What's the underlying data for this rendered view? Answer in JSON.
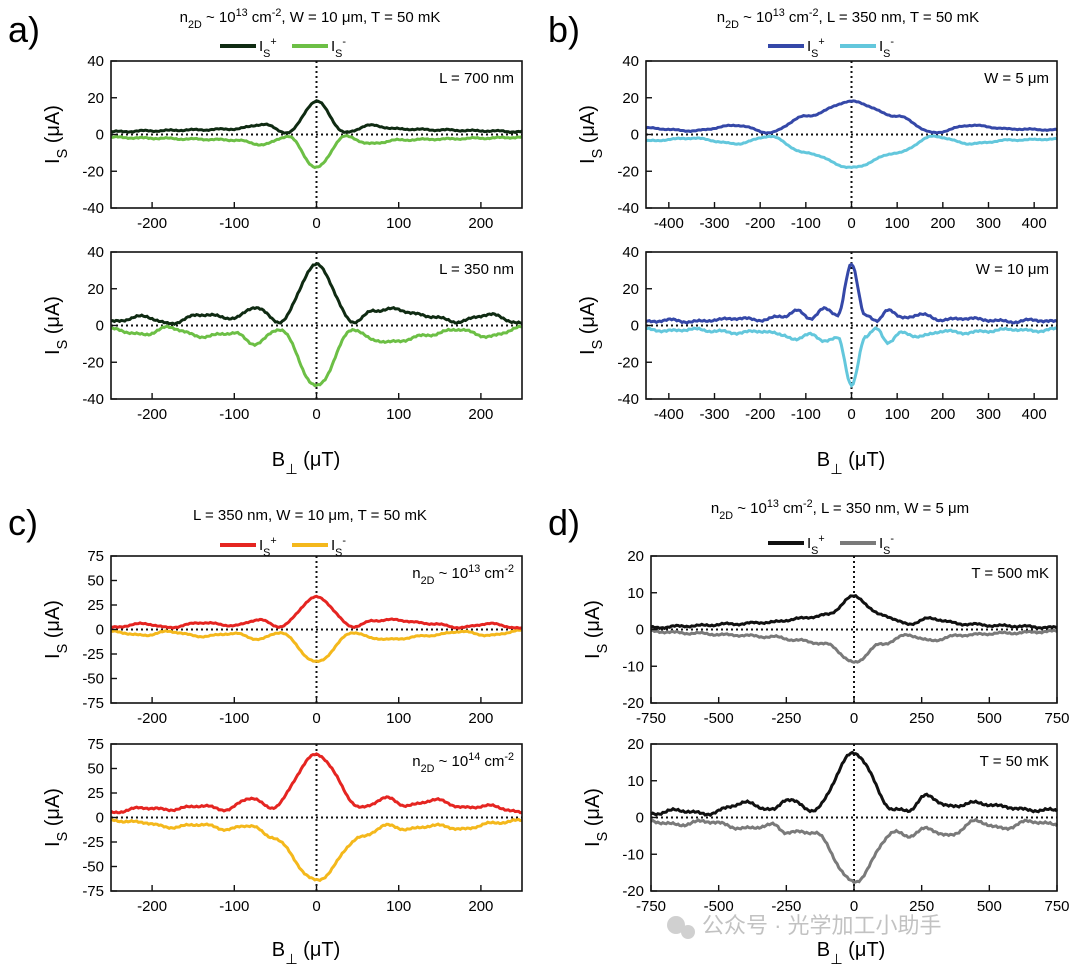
{
  "watermark": "公众号 · 光学加工小助手",
  "chart_data": [
    {
      "panel": "a)",
      "type": "line",
      "title": "n2D ~ 10^13 cm^-2, W = 10 μm, T = 50 mK",
      "title_rich": [
        [
          "n"
        ],
        [
          "2D",
          "sub"
        ],
        [
          " ~ 10"
        ],
        [
          "13",
          "sup"
        ],
        [
          " cm"
        ],
        [
          "-2",
          "sup"
        ],
        [
          ", W = 10 μm, T = 50 mK"
        ]
      ],
      "legend": [
        {
          "name": "Is+",
          "rich": [
            [
              "I"
            ],
            [
              "S",
              "sub"
            ],
            [
              "+",
              "sup"
            ]
          ],
          "color": "#0f2b12"
        },
        {
          "name": "Is-",
          "rich": [
            [
              "I"
            ],
            [
              "S",
              "sub"
            ],
            [
              "-",
              "sup"
            ]
          ],
          "color": "#6cbf45"
        }
      ],
      "xlabel": "B⊥ (μT)",
      "xlim": [
        -250,
        250
      ],
      "xticks": [
        -200,
        -100,
        0,
        100,
        200
      ],
      "subplots": [
        {
          "annotation": "L = 700 nm",
          "ylabel": "IS (μA)",
          "ylim": [
            -40,
            40
          ],
          "yticks": [
            -40,
            -20,
            0,
            20,
            40
          ],
          "peak": 18,
          "period": 65,
          "side_amp": 0.3,
          "grain": 0.5,
          "x": [
            -250,
            -200,
            -150,
            -100,
            -65,
            -35,
            0,
            35,
            65,
            100,
            150,
            200,
            250
          ],
          "pos": [
            1.5,
            2,
            2.5,
            3,
            5.5,
            1,
            18,
            1,
            5,
            3,
            2.5,
            2,
            1.5
          ]
        },
        {
          "annotation": "L = 350 nm",
          "ylabel": "IS (μA)",
          "ylim": [
            -40,
            40
          ],
          "yticks": [
            -40,
            -20,
            0,
            20,
            40
          ],
          "peak": 33,
          "period": 75,
          "side_amp": 0.3,
          "grain": 0.8,
          "x": [
            -250,
            -210,
            -180,
            -140,
            -100,
            -75,
            -45,
            0,
            45,
            70,
            90,
            140,
            170,
            210,
            250
          ],
          "pos": [
            2,
            5,
            1,
            6,
            4,
            10,
            2,
            33,
            2,
            8,
            9,
            5,
            2,
            6,
            1
          ]
        }
      ]
    },
    {
      "panel": "b)",
      "type": "line",
      "title": "n2D ~ 10^13 cm^-2, L = 350 nm, T = 50 mK",
      "title_rich": [
        [
          "n"
        ],
        [
          "2D",
          "sub"
        ],
        [
          " ~ 10"
        ],
        [
          "13",
          "sup"
        ],
        [
          " cm"
        ],
        [
          "-2",
          "sup"
        ],
        [
          ", L = 350 nm, T = 50 mK"
        ]
      ],
      "legend": [
        {
          "name": "Is+",
          "rich": [
            [
              "I"
            ],
            [
              "S",
              "sub"
            ],
            [
              "+",
              "sup"
            ]
          ],
          "color": "#3548a8"
        },
        {
          "name": "Is-",
          "rich": [
            [
              "I"
            ],
            [
              "S",
              "sub"
            ],
            [
              "-",
              "sup"
            ]
          ],
          "color": "#63c7dc"
        }
      ],
      "xlabel": "B⊥ (μT)",
      "xlim": [
        -450,
        450
      ],
      "xticks": [
        -400,
        -300,
        -200,
        -100,
        0,
        100,
        200,
        300,
        400
      ],
      "subplots": [
        {
          "annotation": "W = 5 μm",
          "ylabel": "IS (μA)",
          "ylim": [
            -40,
            40
          ],
          "yticks": [
            -40,
            -20,
            0,
            20,
            40
          ],
          "peak": 18,
          "period": 350,
          "side_amp": 0.28,
          "grain": 0.4,
          "x": [
            -450,
            -350,
            -250,
            -180,
            -100,
            0,
            100,
            180,
            260,
            350,
            450
          ],
          "pos": [
            3.5,
            2,
            5,
            1,
            10,
            18,
            10,
            1,
            5,
            3,
            2.5
          ]
        },
        {
          "annotation": "W = 10 μm",
          "ylabel": "IS (μA)",
          "ylim": [
            -40,
            40
          ],
          "yticks": [
            -40,
            -20,
            0,
            20,
            40
          ],
          "peak": 33,
          "period": 60,
          "side_amp": 0.3,
          "grain": 0.8,
          "x": [
            -450,
            -400,
            -350,
            -300,
            -250,
            -200,
            -150,
            -120,
            -90,
            -60,
            -30,
            0,
            30,
            55,
            80,
            110,
            150,
            200,
            250,
            300,
            350,
            400,
            450
          ],
          "pos": [
            2,
            3,
            2,
            3,
            4,
            3,
            5,
            8,
            4,
            9,
            6,
            33,
            6,
            2,
            9,
            4,
            6,
            3,
            4,
            3,
            2,
            3,
            2
          ]
        }
      ]
    },
    {
      "panel": "c)",
      "type": "line",
      "title": "L = 350 nm, W = 10 μm, T = 50 mK",
      "title_rich": [
        [
          "L = 350 nm, W = 10 μm, T = 50 mK"
        ]
      ],
      "legend": [
        {
          "name": "Is+",
          "rich": [
            [
              "I"
            ],
            [
              "S",
              "sub"
            ],
            [
              "+",
              "sup"
            ]
          ],
          "color": "#e52521"
        },
        {
          "name": "Is-",
          "rich": [
            [
              "I"
            ],
            [
              "S",
              "sub"
            ],
            [
              "-",
              "sup"
            ]
          ],
          "color": "#f4b81c"
        }
      ],
      "xlabel": "B⊥ (μT)",
      "xlim": [
        -250,
        250
      ],
      "xticks": [
        -200,
        -100,
        0,
        100,
        200
      ],
      "subplots": [
        {
          "annotation": "n2D ~ 10^13 cm^-2",
          "annotation_rich": [
            [
              "n"
            ],
            [
              "2D",
              "sub"
            ],
            [
              " ~ 10"
            ],
            [
              "13",
              "sup"
            ],
            [
              " cm"
            ],
            [
              "-2",
              "sup"
            ]
          ],
          "ylabel": "IS (μA)",
          "ylim": [
            -75,
            75
          ],
          "yticks": [
            -75,
            -50,
            -25,
            0,
            25,
            50,
            75
          ],
          "peak": 33,
          "period": 75,
          "side_amp": 0.3,
          "grain": 0.9,
          "x": [
            -250,
            -210,
            -180,
            -140,
            -100,
            -70,
            -45,
            0,
            45,
            70,
            90,
            140,
            175,
            210,
            250
          ],
          "pos": [
            2,
            6,
            2,
            7,
            4,
            10,
            3,
            33,
            3,
            9,
            10,
            6,
            2,
            6,
            1
          ]
        },
        {
          "annotation": "n2D ~ 10^14 cm^-2",
          "annotation_rich": [
            [
              "n"
            ],
            [
              "2D",
              "sub"
            ],
            [
              " ~ 10"
            ],
            [
              "14",
              "sup"
            ],
            [
              " cm"
            ],
            [
              "-2",
              "sup"
            ]
          ],
          "ylabel": "IS (μA)",
          "ylim": [
            -75,
            75
          ],
          "yticks": [
            -75,
            -50,
            -25,
            0,
            25,
            50,
            75
          ],
          "peak": 64,
          "period": 75,
          "side_amp": 0.3,
          "grain": 1.4,
          "x": [
            -250,
            -210,
            -180,
            -140,
            -110,
            -80,
            -55,
            0,
            55,
            85,
            110,
            145,
            180,
            210,
            250
          ],
          "neg": [
            -3,
            -5,
            -10,
            -7,
            -12,
            -8,
            -20,
            -64,
            -20,
            -8,
            -12,
            -8,
            -12,
            -6,
            -3
          ],
          "pos": [
            5,
            10,
            8,
            12,
            8,
            20,
            10,
            64,
            10,
            20,
            12,
            18,
            10,
            12,
            5
          ]
        }
      ]
    },
    {
      "panel": "d)",
      "type": "line",
      "title": "n2D ~ 10^13 cm^-2, L = 350 nm, W = 5 μm",
      "title_rich": [
        [
          "n"
        ],
        [
          "2D",
          "sub"
        ],
        [
          " ~ 10"
        ],
        [
          "13",
          "sup"
        ],
        [
          " cm"
        ],
        [
          "-2",
          "sup"
        ],
        [
          ", L = 350 nm, W = 5 μm"
        ]
      ],
      "legend": [
        {
          "name": "Is+",
          "rich": [
            [
              "I"
            ],
            [
              "S",
              "sub"
            ],
            [
              "+",
              "sup"
            ]
          ],
          "color": "#111111"
        },
        {
          "name": "Is-",
          "rich": [
            [
              "I"
            ],
            [
              "S",
              "sub"
            ],
            [
              "-",
              "sup"
            ]
          ],
          "color": "#7a7a7a"
        }
      ],
      "xlabel": "B⊥ (μT)",
      "xlim": [
        -750,
        750
      ],
      "xticks": [
        -750,
        -500,
        -250,
        0,
        250,
        500,
        750
      ],
      "subplots": [
        {
          "annotation": "T = 500 mK",
          "ylabel": "IS (μA)",
          "ylim": [
            -20,
            20
          ],
          "yticks": [
            -20,
            -10,
            0,
            10,
            20
          ],
          "peak": 9,
          "period": 180,
          "side_amp": 0.3,
          "grain": 0.35,
          "x": [
            -750,
            -600,
            -450,
            -300,
            -200,
            -100,
            0,
            100,
            200,
            280,
            400,
            550,
            750
          ],
          "pos": [
            0.5,
            1,
            1.5,
            2,
            3,
            4,
            9,
            4,
            1.5,
            3,
            1.5,
            1,
            0.5
          ]
        },
        {
          "annotation": "T = 50 mK",
          "ylabel": "IS (μA)",
          "ylim": [
            -20,
            20
          ],
          "yticks": [
            -20,
            -10,
            0,
            10,
            20
          ],
          "peak": 17.5,
          "period": 200,
          "side_amp": 0.3,
          "grain": 0.5,
          "x": [
            -750,
            -650,
            -550,
            -400,
            -300,
            -250,
            -150,
            0,
            150,
            200,
            270,
            350,
            450,
            550,
            650,
            750
          ],
          "neg": [
            -1,
            -2,
            -1,
            -3,
            -2,
            -4,
            -4,
            -17.5,
            -4,
            -5,
            -3,
            -5,
            -1,
            -3,
            -1,
            -2
          ],
          "pos": [
            1,
            2,
            1,
            4,
            2,
            5,
            2,
            17.5,
            2,
            2,
            6,
            3,
            4,
            3,
            2,
            2
          ]
        }
      ]
    }
  ]
}
